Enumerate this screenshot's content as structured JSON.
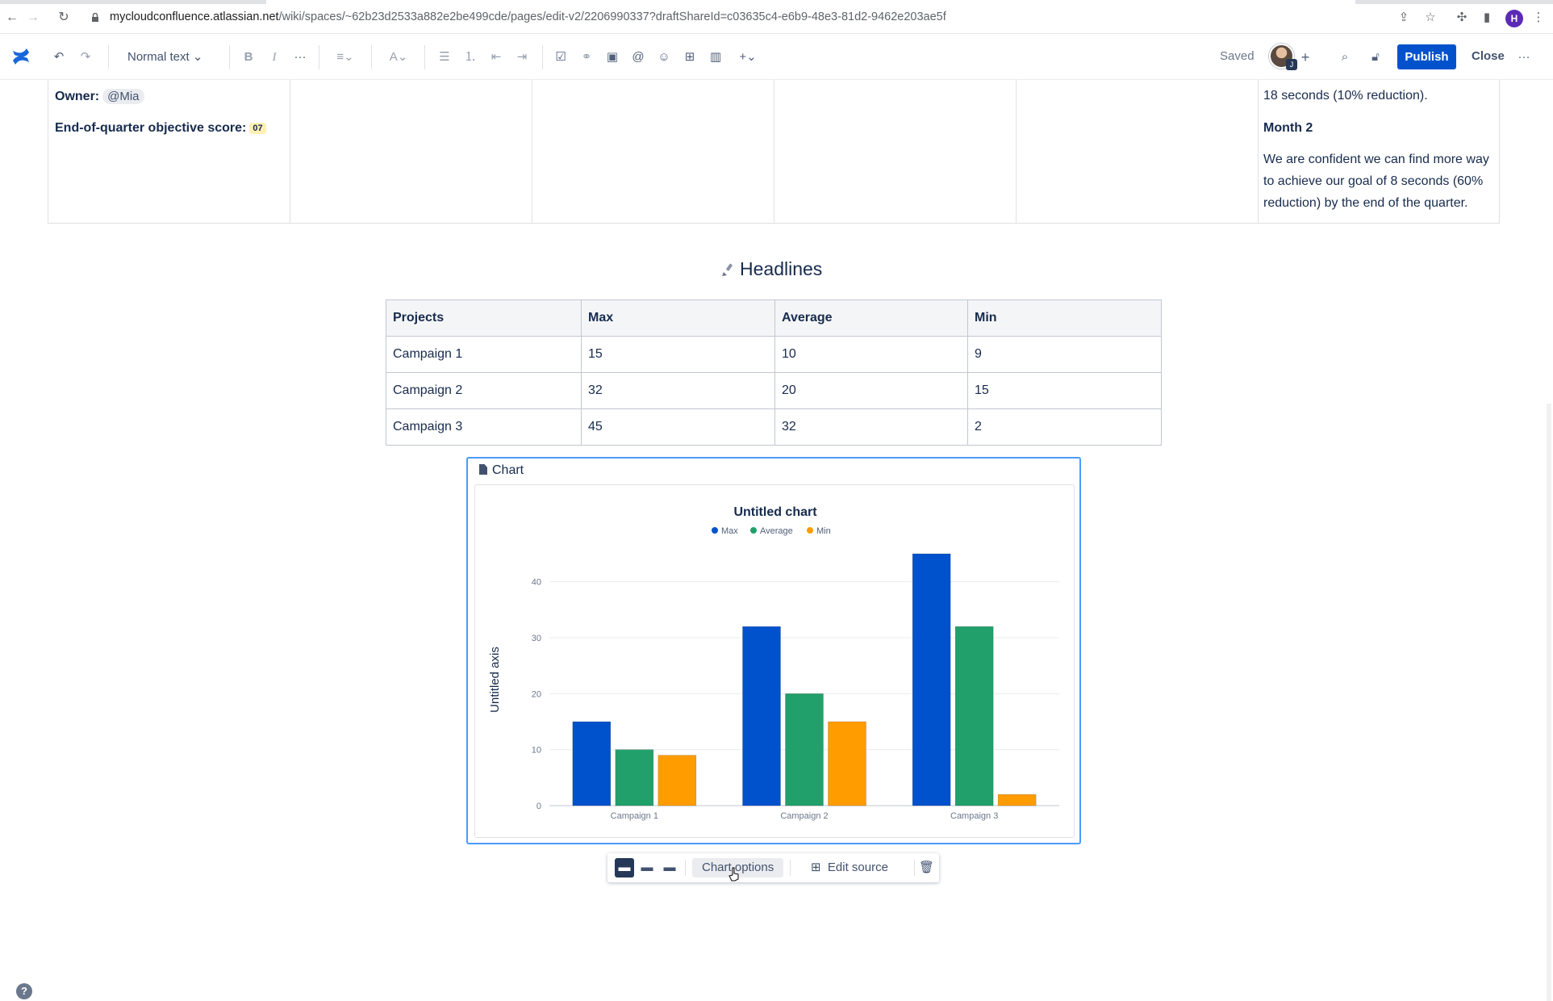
{
  "browser": {
    "url_host": "mycloudconfluence.atlassian.net",
    "url_path": "/wiki/spaces/~62b23d2533a882e2be499cde/pages/edit-v2/2206990337?draftShareId=c03635c4-e6b9-48e3-81d2-9462e203ae5f",
    "profile_initial": "H"
  },
  "toolbar": {
    "text_style": "Normal text",
    "saved_label": "Saved",
    "avatar_badge": "J",
    "publish_label": "Publish",
    "close_label": "Close"
  },
  "top_table": {
    "owner_label": "Owner:",
    "owner_mention": "@Mia",
    "score_label": "End-of-quarter objective score:",
    "score_value": "07",
    "right_cell": {
      "line1": "18 seconds (10% reduction).",
      "month2_heading": "Month 2",
      "line2": "We are confident we can find more way",
      "line3": "to achieve our goal of 8 seconds (60%",
      "line4": "reduction) by the end of the quarter."
    }
  },
  "headlines": {
    "title": "Headlines"
  },
  "table": {
    "headers": [
      "Projects",
      "Max",
      "Average",
      "Min"
    ],
    "rows": [
      [
        "Campaign 1",
        "15",
        "10",
        "9"
      ],
      [
        "Campaign 2",
        "32",
        "20",
        "15"
      ],
      [
        "Campaign 3",
        "45",
        "32",
        "2"
      ]
    ]
  },
  "chart_macro": {
    "label": "Chart"
  },
  "chart_data": {
    "type": "bar",
    "title": "Untitled chart",
    "ylabel": "Untitled axis",
    "xlabel": "",
    "categories": [
      "Campaign 1",
      "Campaign 2",
      "Campaign 3"
    ],
    "series": [
      {
        "name": "Max",
        "values": [
          15,
          32,
          45
        ],
        "color": "#0052cc"
      },
      {
        "name": "Average",
        "values": [
          10,
          20,
          32
        ],
        "color": "#22a06b"
      },
      {
        "name": "Min",
        "values": [
          9,
          15,
          2
        ],
        "color": "#ff9c00"
      }
    ],
    "ylim": [
      0,
      45
    ],
    "yticks": [
      0,
      10,
      20,
      30,
      40
    ],
    "legend": "top-center",
    "grid": true
  },
  "chart_toolbar": {
    "chart_options_label": "Chart options",
    "edit_source_label": "Edit source"
  },
  "help": "?"
}
